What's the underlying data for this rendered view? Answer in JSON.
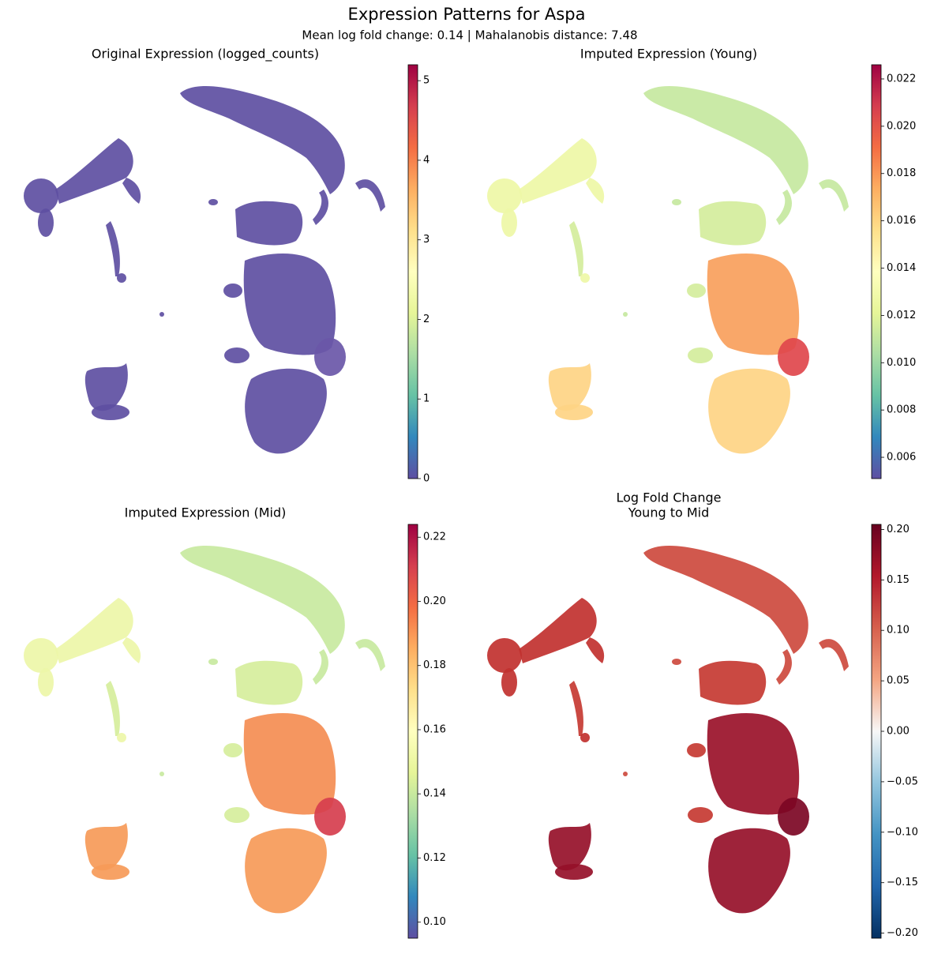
{
  "title": "Expression Patterns for Aspa",
  "subtitle": "Mean log fold change: 0.14 | Mahalanobis distance: 7.48",
  "chart_data": [
    {
      "type": "scatter",
      "title": "Original Expression (logged_counts)",
      "colormap": "Spectral_r",
      "clim": [
        0,
        5.2
      ],
      "cticks": [
        0,
        1,
        2,
        3,
        4,
        5
      ]
    },
    {
      "type": "scatter",
      "title": "Imputed Expression (Young)",
      "colormap": "Spectral_r",
      "clim": [
        0.0051,
        0.0226
      ],
      "cticks": [
        0.006,
        0.008,
        {
          "value": 0.01,
          "label": "0.010"
        },
        0.012,
        0.014,
        0.016,
        0.018,
        {
          "value": 0.02,
          "label": "0.020"
        },
        0.022
      ]
    },
    {
      "type": "scatter",
      "title": "Imputed Expression (Mid)",
      "colormap": "Spectral_r",
      "clim": [
        0.095,
        0.224
      ],
      "cticks": [
        {
          "value": 0.1,
          "label": "0.10"
        },
        0.12,
        0.14,
        0.16,
        0.18,
        {
          "value": 0.2,
          "label": "0.20"
        },
        0.22
      ]
    },
    {
      "type": "scatter",
      "title_lines": [
        "Log Fold Change",
        "Young to Mid"
      ],
      "colormap": "RdBu_r",
      "clim": [
        -0.205,
        0.205
      ],
      "cticks": [
        {
          "value": -0.2,
          "label": "−0.20"
        },
        {
          "value": -0.15,
          "label": "−0.15"
        },
        {
          "value": -0.1,
          "label": "−0.10"
        },
        {
          "value": -0.05,
          "label": "−0.05"
        },
        {
          "value": 0,
          "label": "0.00"
        },
        0.05,
        {
          "value": 0.1,
          "label": "0.10"
        },
        0.15,
        {
          "value": 0.2,
          "label": "0.20"
        }
      ]
    }
  ]
}
